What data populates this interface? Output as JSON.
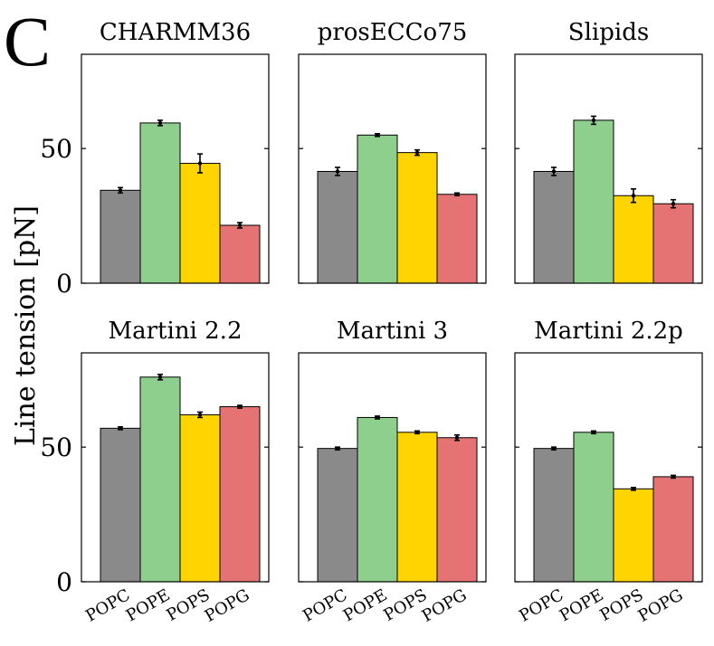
{
  "figure": {
    "panel_letter": "C",
    "ylabel": "Line tension [pN]",
    "y_ticks": [
      0,
      50
    ],
    "colors": {
      "POPC": "#8a8a8a",
      "POPE": "#8ecf8e",
      "POPS": "#ffd400",
      "POPG": "#e57373"
    }
  },
  "chart_data": [
    {
      "type": "bar",
      "title": "CHARMM36",
      "categories": [
        "POPC",
        "POPE",
        "POPS",
        "POPG"
      ],
      "values": [
        34.5,
        59.5,
        44.5,
        21.5
      ],
      "errors": [
        1.0,
        1.0,
        3.5,
        1.0
      ],
      "ylim": [
        0,
        85
      ]
    },
    {
      "type": "bar",
      "title": "prosECCo75",
      "categories": [
        "POPC",
        "POPE",
        "POPS",
        "POPG"
      ],
      "values": [
        41.5,
        55.0,
        48.5,
        33.0
      ],
      "errors": [
        1.5,
        0.5,
        1.0,
        0.5
      ],
      "ylim": [
        0,
        85
      ]
    },
    {
      "type": "bar",
      "title": "Slipids",
      "categories": [
        "POPC",
        "POPE",
        "POPS",
        "POPG"
      ],
      "values": [
        41.5,
        60.5,
        32.5,
        29.5
      ],
      "errors": [
        1.5,
        1.5,
        2.5,
        1.5
      ],
      "ylim": [
        0,
        85
      ]
    },
    {
      "type": "bar",
      "title": "Martini 2.2",
      "categories": [
        "POPC",
        "POPE",
        "POPS",
        "POPG"
      ],
      "values": [
        57.0,
        76.0,
        62.0,
        65.0
      ],
      "errors": [
        0.5,
        1.0,
        1.0,
        0.5
      ],
      "ylim": [
        0,
        85
      ]
    },
    {
      "type": "bar",
      "title": "Martini 3",
      "categories": [
        "POPC",
        "POPE",
        "POPS",
        "POPG"
      ],
      "values": [
        49.5,
        61.0,
        55.5,
        53.5
      ],
      "errors": [
        0.5,
        0.5,
        0.5,
        1.0
      ],
      "ylim": [
        0,
        85
      ]
    },
    {
      "type": "bar",
      "title": "Martini 2.2p",
      "categories": [
        "POPC",
        "POPE",
        "POPS",
        "POPG"
      ],
      "values": [
        49.5,
        55.5,
        34.5,
        39.0
      ],
      "errors": [
        0.5,
        0.5,
        0.5,
        0.5
      ],
      "ylim": [
        0,
        85
      ]
    }
  ]
}
